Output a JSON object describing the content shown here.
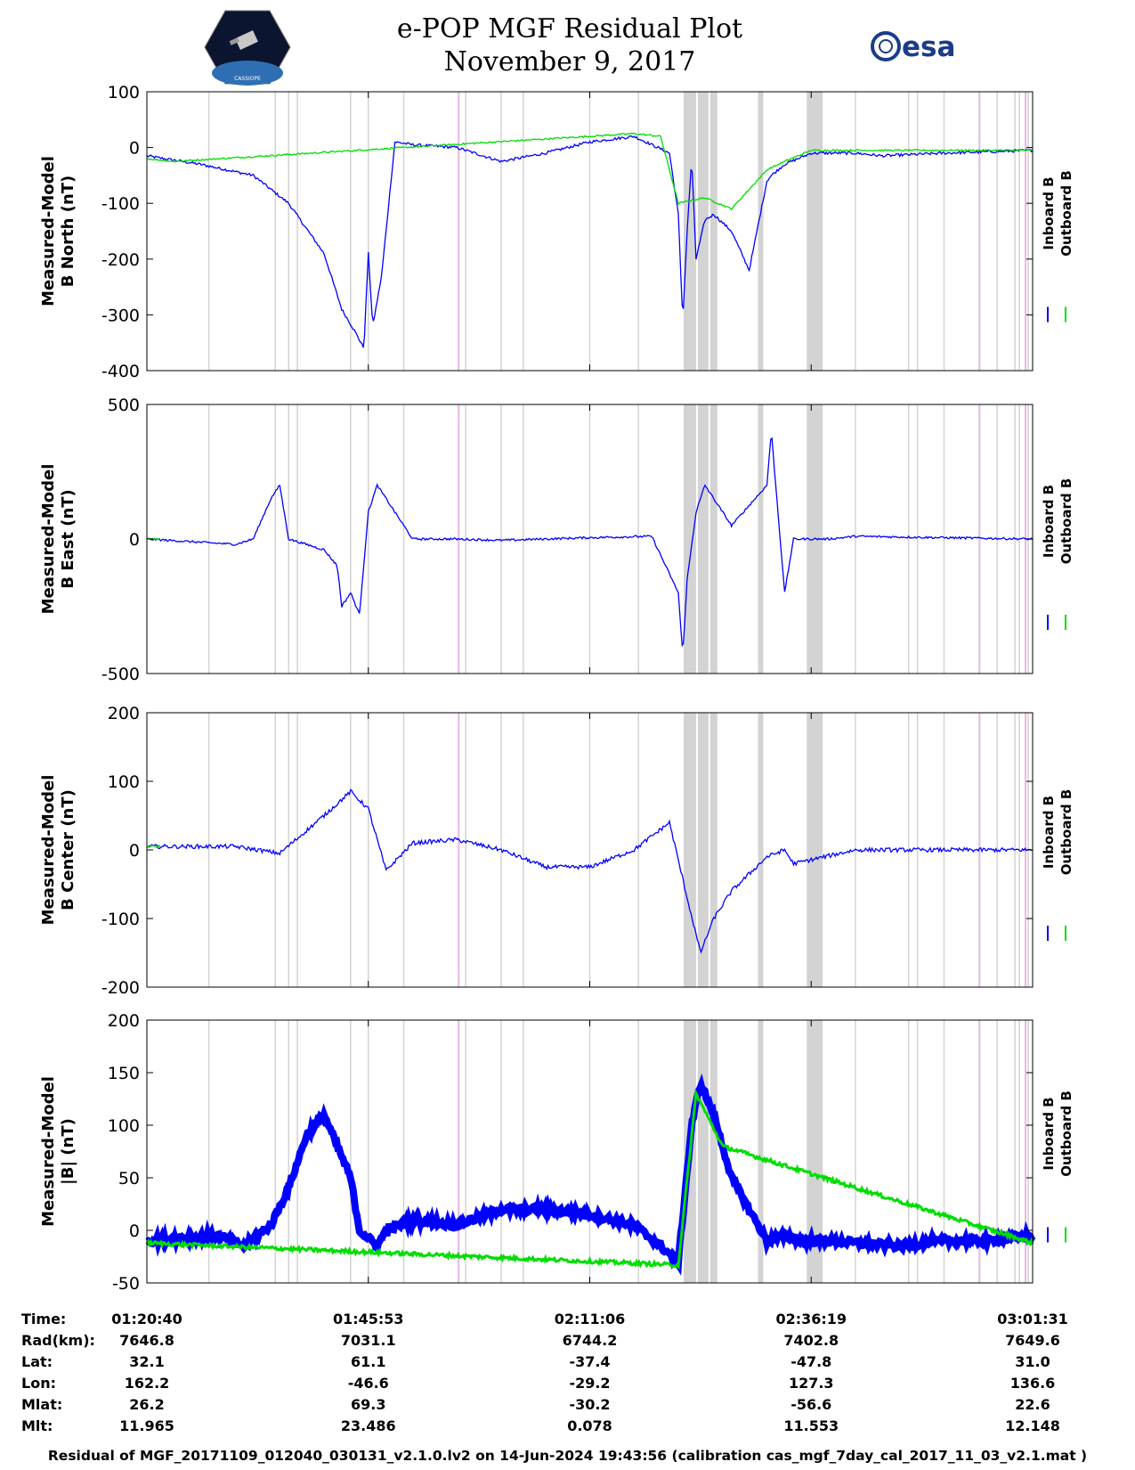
{
  "header": {
    "title": "e-POP MGF Residual Plot",
    "date": "November 9, 2017",
    "right_logo_text": "esa",
    "left_logo_text": "CASSIOPE"
  },
  "legend": {
    "inboard": "Inboard B",
    "outboard": "Outboard B",
    "inboard_color": "#0000ff",
    "outboard_color": "#00dd00"
  },
  "colors": {
    "flag_gray": "#d3d3d3",
    "flag_pink": "#e6b8e6"
  },
  "chart_data": [
    {
      "type": "line",
      "ylabel": [
        "Measured-Model",
        "B North (nT)"
      ],
      "ylim": [
        -400,
        100
      ],
      "yticks": [
        100,
        0,
        -100,
        -200,
        -300,
        -400
      ],
      "series": [
        {
          "name": "Inboard B",
          "x_frac": [
            0,
            0.06,
            0.12,
            0.16,
            0.2,
            0.22,
            0.235,
            0.245,
            0.25,
            0.255,
            0.265,
            0.28,
            0.3,
            0.35,
            0.4,
            0.45,
            0.5,
            0.55,
            0.59,
            0.6,
            0.605,
            0.61,
            0.615,
            0.62,
            0.63,
            0.64,
            0.66,
            0.68,
            0.7,
            0.705,
            0.72,
            0.75,
            0.8,
            0.83,
            0.9,
            1.0
          ],
          "y": [
            -15,
            -30,
            -50,
            -100,
            -190,
            -290,
            -330,
            -360,
            -190,
            -320,
            -230,
            10,
            5,
            0,
            -25,
            -10,
            10,
            20,
            -10,
            -120,
            -310,
            -150,
            -20,
            -200,
            -130,
            -120,
            -150,
            -220,
            -60,
            -50,
            -30,
            -10,
            -10,
            -15,
            -10,
            -5
          ]
        },
        {
          "name": "Outboard B",
          "x_frac": [
            0,
            0.03,
            0.55,
            0.58,
            0.6,
            0.63,
            0.66,
            0.7,
            0.72,
            0.75,
            1.0
          ],
          "y": [
            -20,
            -25,
            25,
            20,
            -100,
            -90,
            -110,
            -40,
            -25,
            -5,
            -5
          ]
        }
      ]
    },
    {
      "type": "line",
      "ylabel": [
        "Measured-Model",
        "B East (nT)"
      ],
      "ylim": [
        -500,
        500
      ],
      "yticks": [
        500,
        0,
        -500
      ],
      "series": [
        {
          "name": "Inboard B",
          "x_frac": [
            0,
            0.1,
            0.12,
            0.14,
            0.15,
            0.16,
            0.2,
            0.215,
            0.22,
            0.23,
            0.24,
            0.25,
            0.26,
            0.3,
            0.35,
            0.4,
            0.45,
            0.5,
            0.57,
            0.6,
            0.605,
            0.61,
            0.62,
            0.63,
            0.66,
            0.7,
            0.705,
            0.72,
            0.73,
            0.77,
            0.8,
            1.0
          ],
          "y": [
            0,
            -20,
            0,
            150,
            200,
            0,
            -40,
            -100,
            -250,
            -200,
            -280,
            100,
            200,
            0,
            0,
            -5,
            0,
            5,
            10,
            -200,
            -430,
            -150,
            100,
            200,
            50,
            200,
            400,
            -200,
            0,
            0,
            10,
            0
          ]
        },
        {
          "name": "Outboard B",
          "x_frac": [
            0,
            0.015
          ],
          "y": [
            0,
            0
          ]
        }
      ]
    },
    {
      "type": "line",
      "ylabel": [
        "Measured-Model",
        "B Center (nT)"
      ],
      "ylim": [
        -200,
        200
      ],
      "yticks": [
        200,
        100,
        0,
        -100,
        -200
      ],
      "series": [
        {
          "name": "Inboard B",
          "x_frac": [
            0,
            0.1,
            0.15,
            0.2,
            0.23,
            0.25,
            0.27,
            0.3,
            0.35,
            0.4,
            0.45,
            0.5,
            0.55,
            0.59,
            0.61,
            0.625,
            0.64,
            0.66,
            0.7,
            0.72,
            0.73,
            0.8,
            0.83,
            0.9,
            1.0
          ],
          "y": [
            5,
            5,
            -5,
            50,
            85,
            60,
            -30,
            10,
            15,
            0,
            -25,
            -25,
            0,
            40,
            -70,
            -150,
            -100,
            -60,
            -10,
            0,
            -20,
            0,
            0,
            0,
            0
          ]
        },
        {
          "name": "Outboard B",
          "x_frac": [
            0,
            0.015
          ],
          "y": [
            5,
            5
          ]
        }
      ]
    },
    {
      "type": "line",
      "ylabel": [
        "Measured-Model",
        "|B| (nT)"
      ],
      "ylim": [
        -50,
        200
      ],
      "yticks": [
        200,
        150,
        100,
        50,
        0,
        -50
      ],
      "series": [
        {
          "name": "Inboard B",
          "x_frac": [
            0,
            0.08,
            0.11,
            0.14,
            0.16,
            0.18,
            0.2,
            0.23,
            0.24,
            0.26,
            0.27,
            0.3,
            0.35,
            0.4,
            0.45,
            0.5,
            0.55,
            0.58,
            0.6,
            0.615,
            0.625,
            0.64,
            0.66,
            0.7,
            0.72,
            0.74,
            0.77,
            0.85,
            0.9,
            0.95,
            1.0
          ],
          "y": [
            -10,
            -5,
            -15,
            5,
            40,
            90,
            110,
            50,
            0,
            -15,
            0,
            10,
            5,
            20,
            20,
            15,
            5,
            -15,
            -30,
            100,
            140,
            110,
            50,
            -10,
            -5,
            -10,
            -10,
            -15,
            -10,
            -10,
            -5
          ]
        },
        {
          "name": "Outboard B",
          "x_frac": [
            0,
            0.6,
            0.62,
            0.65,
            1.0
          ],
          "y": [
            -12,
            -33,
            130,
            80,
            -12
          ]
        }
      ]
    }
  ],
  "x_axis": {
    "row_labels": [
      "Time:",
      "Rad(km):",
      "Lat:",
      "Lon:",
      "Mlat:",
      "Mlt:"
    ],
    "columns": [
      [
        "01:20:40",
        "7646.8",
        "32.1",
        "162.2",
        "26.2",
        "11.965"
      ],
      [
        "01:45:53",
        "7031.1",
        "61.1",
        "-46.6",
        "69.3",
        "23.486"
      ],
      [
        "02:11:06",
        "6744.2",
        "-37.4",
        "-29.2",
        "-30.2",
        "0.078"
      ],
      [
        "02:36:19",
        "7402.8",
        "-47.8",
        "127.3",
        "-56.6",
        "11.553"
      ],
      [
        "03:01:31",
        "7649.6",
        "31.0",
        "136.6",
        "22.6",
        "12.148"
      ]
    ]
  },
  "footer": "Residual of MGF_20171109_012040_030131_v2.1.0.lv2 on 14-Jun-2024 19:43:56 (calibration cas_mgf_7day_cal_2017_11_03_v2.1.mat )"
}
